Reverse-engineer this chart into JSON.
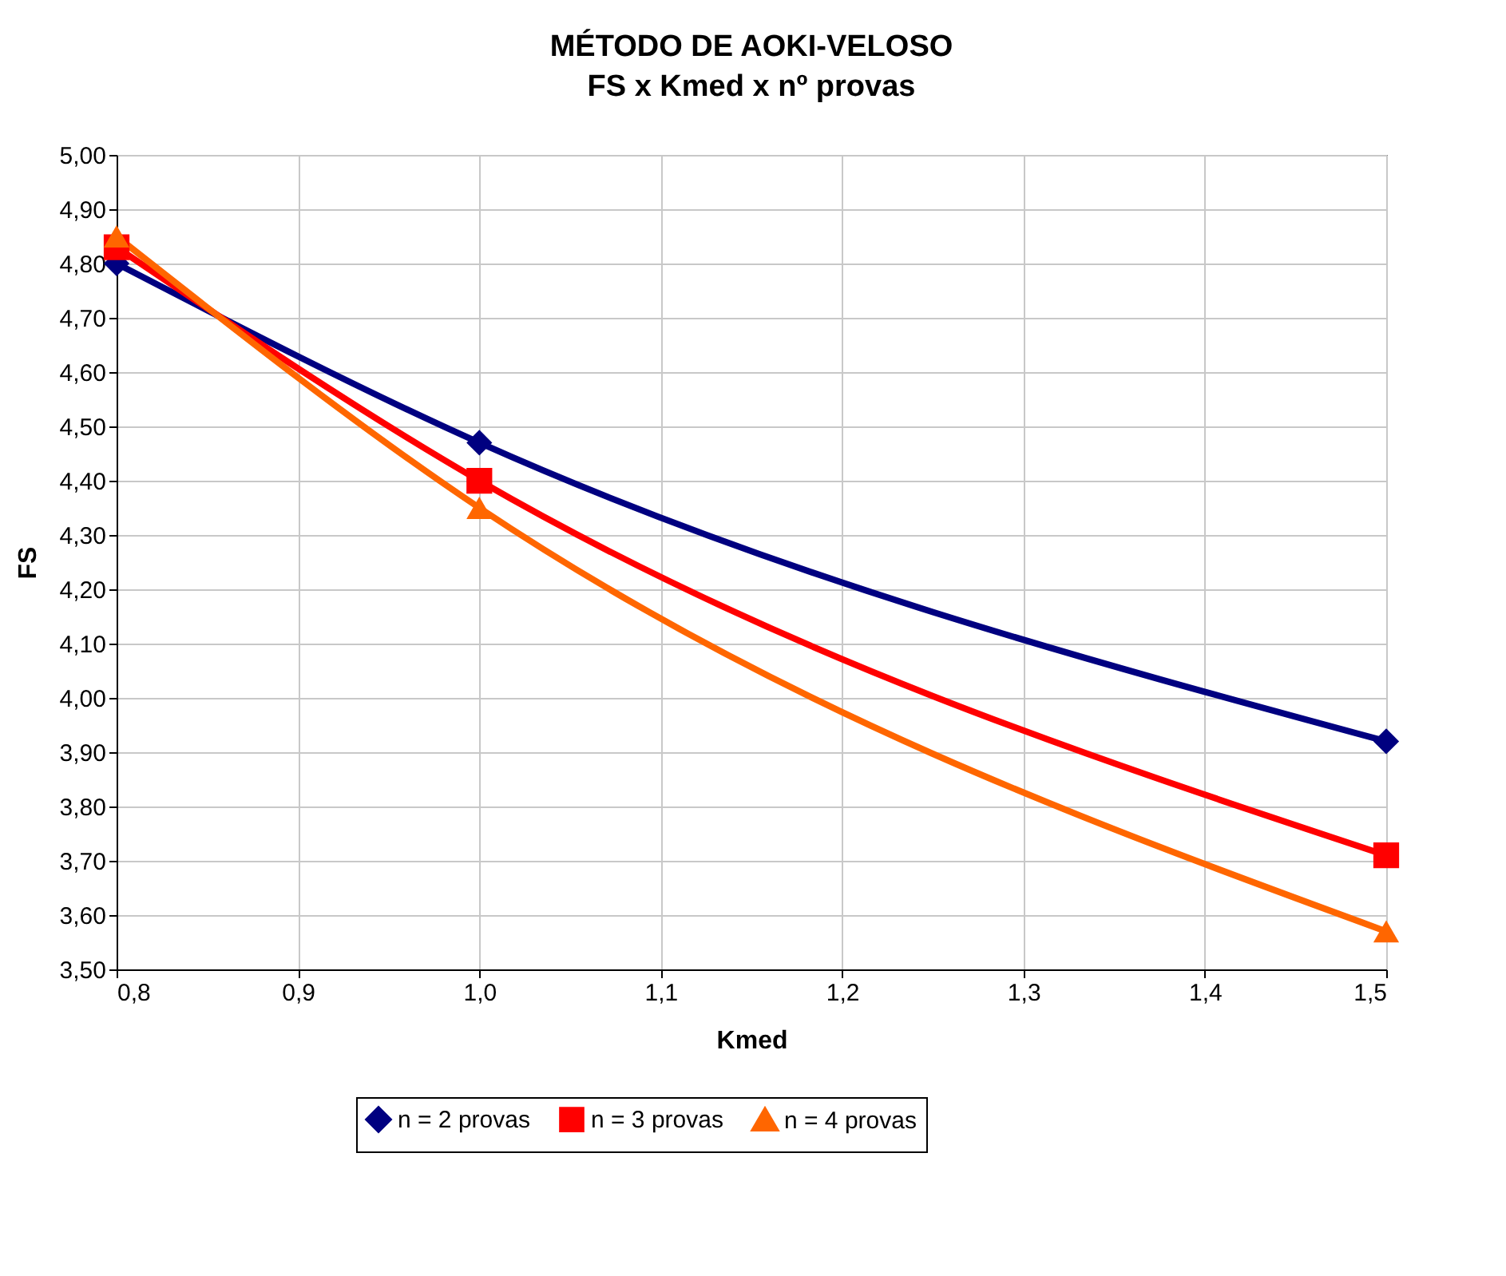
{
  "chart_data": {
    "type": "line",
    "title": "MÉTODO DE AOKI-VELOSO",
    "subtitle": "FS x Kmed x nº provas",
    "xlabel": "Kmed",
    "ylabel": "FS",
    "x": [
      0.8,
      1.0,
      1.5
    ],
    "series": [
      {
        "name": "n = 2 provas",
        "color": "#000080",
        "marker": "diamond",
        "values": [
          4.8,
          4.47,
          3.92
        ]
      },
      {
        "name": "n = 3 provas",
        "color": "#ff0000",
        "marker": "square",
        "values": [
          4.83,
          4.4,
          3.71
        ]
      },
      {
        "name": "n = 4 provas",
        "color": "#ff6600",
        "marker": "triangle",
        "values": [
          4.85,
          4.35,
          3.57
        ]
      }
    ],
    "xlim": [
      0.8,
      1.5
    ],
    "xticks": [
      {
        "value": 0.8,
        "label": "0,8"
      },
      {
        "value": 0.9,
        "label": "0,9"
      },
      {
        "value": 1.0,
        "label": "1,0"
      },
      {
        "value": 1.1,
        "label": "1,1"
      },
      {
        "value": 1.2,
        "label": "1,2"
      },
      {
        "value": 1.3,
        "label": "1,3"
      },
      {
        "value": 1.4,
        "label": "1,4"
      },
      {
        "value": 1.5,
        "label": "1,5"
      }
    ],
    "ylim": [
      3.5,
      5.0
    ],
    "yticks": [
      {
        "value": 3.5,
        "label": "3,50"
      },
      {
        "value": 3.6,
        "label": "3,60"
      },
      {
        "value": 3.7,
        "label": "3,70"
      },
      {
        "value": 3.8,
        "label": "3,80"
      },
      {
        "value": 3.9,
        "label": "3,90"
      },
      {
        "value": 4.0,
        "label": "4,00"
      },
      {
        "value": 4.1,
        "label": "4,10"
      },
      {
        "value": 4.2,
        "label": "4,20"
      },
      {
        "value": 4.3,
        "label": "4,30"
      },
      {
        "value": 4.4,
        "label": "4,40"
      },
      {
        "value": 4.5,
        "label": "4,50"
      },
      {
        "value": 4.6,
        "label": "4,60"
      },
      {
        "value": 4.7,
        "label": "4,70"
      },
      {
        "value": 4.8,
        "label": "4,80"
      },
      {
        "value": 4.9,
        "label": "4,90"
      },
      {
        "value": 5.0,
        "label": "5,00"
      }
    ],
    "grid": true,
    "legend": "bottom",
    "line_style": "solid"
  }
}
